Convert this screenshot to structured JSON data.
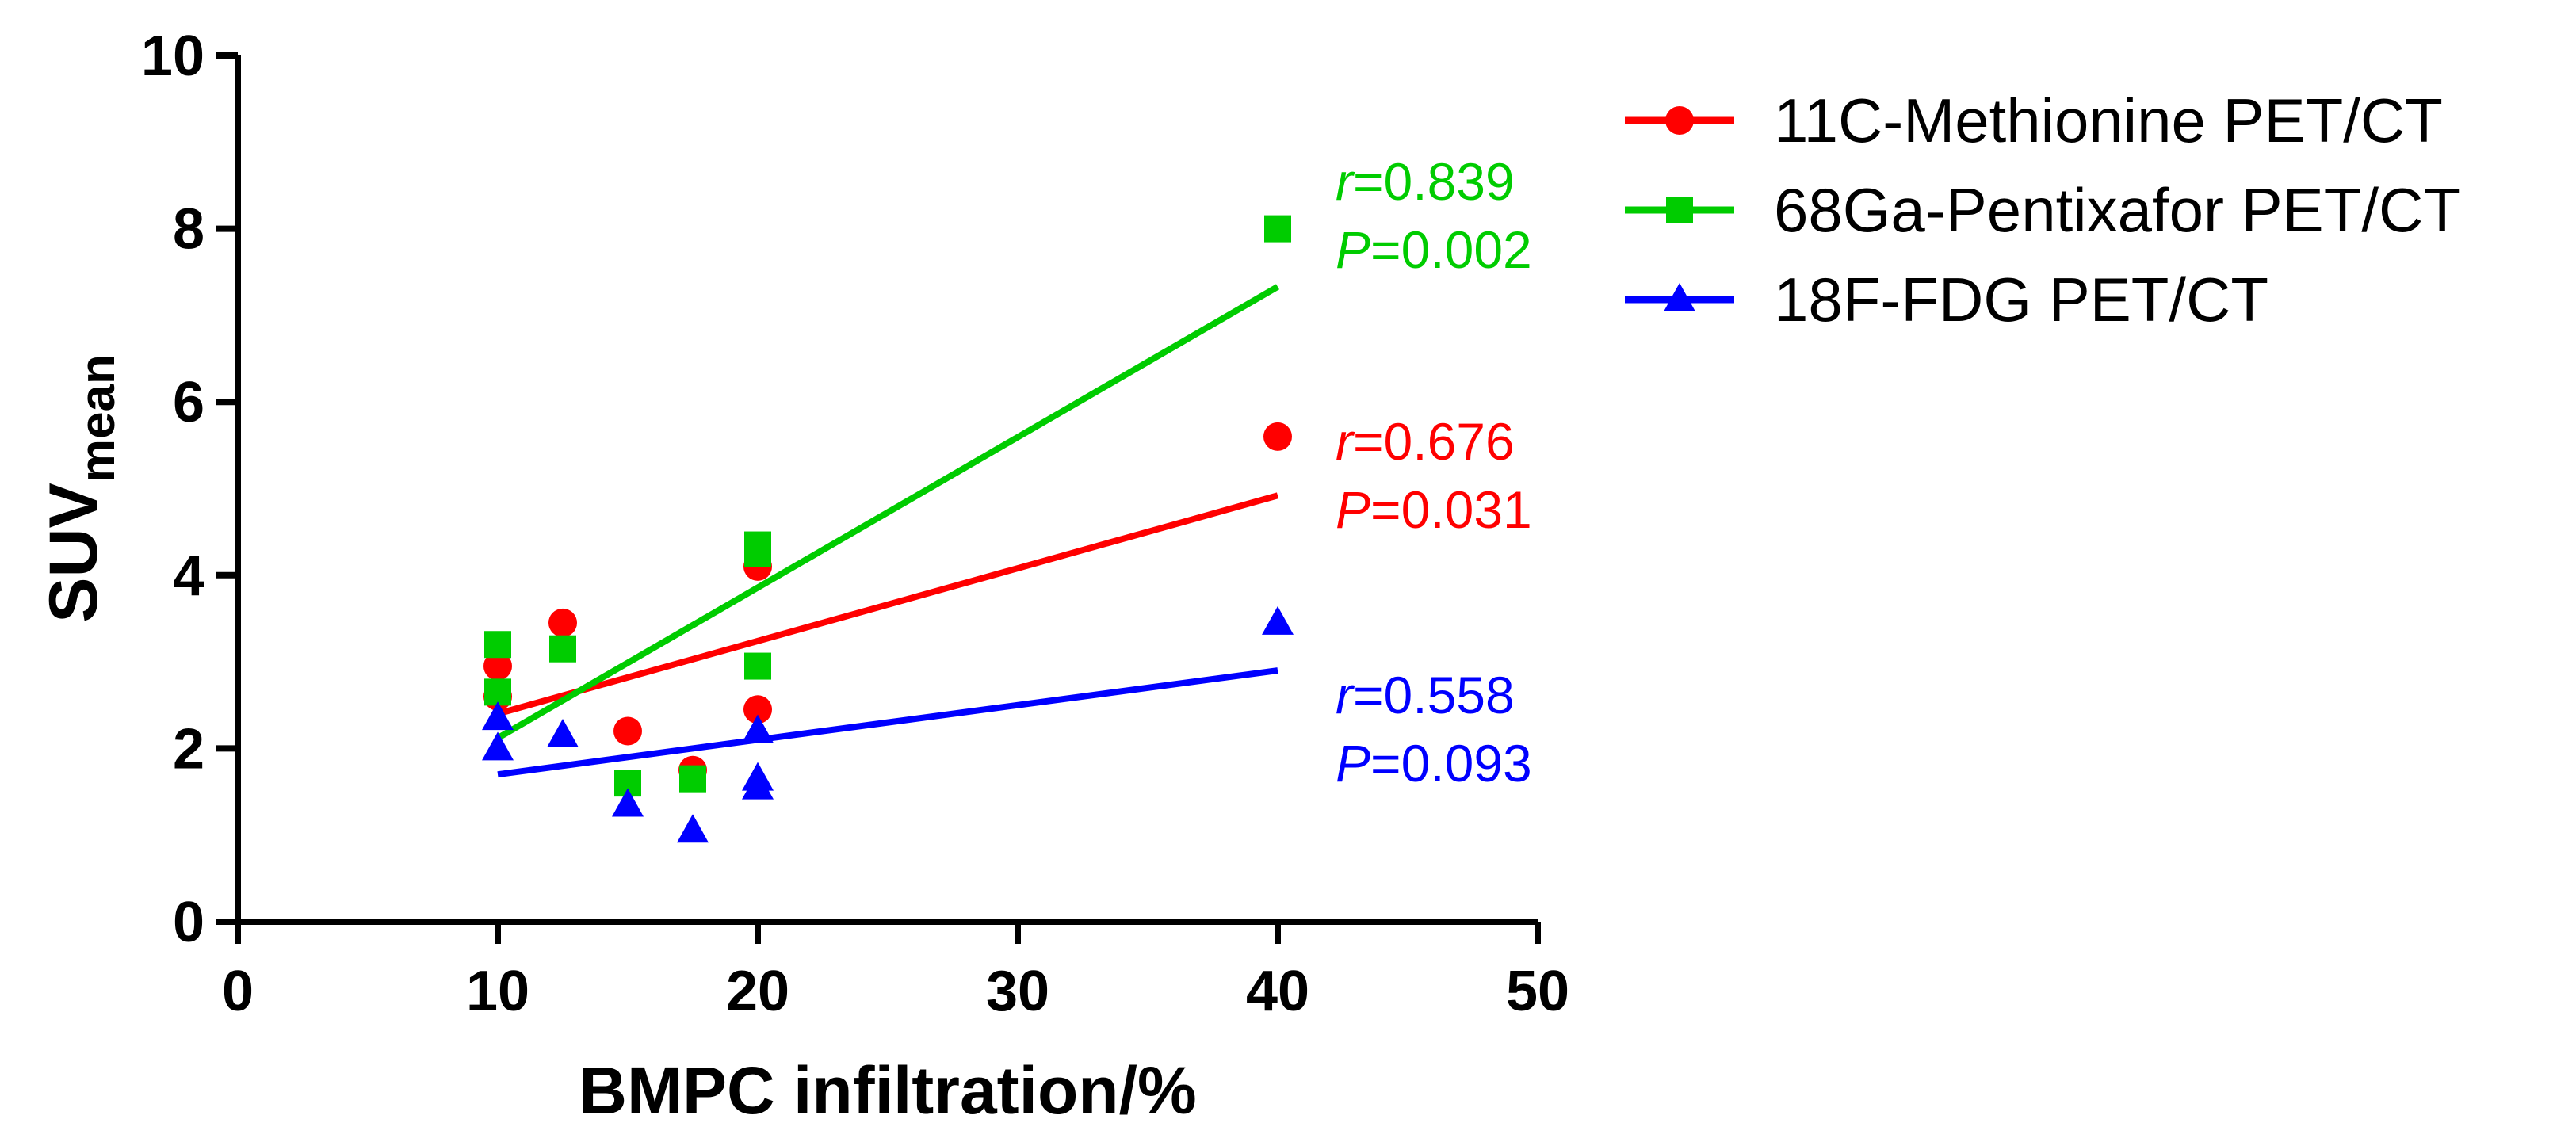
{
  "chart_data": {
    "type": "scatter",
    "xlabel": "BMPC infiltration/%",
    "ylabel": {
      "main": "SUV",
      "subscript": "mean"
    },
    "xlim": [
      0,
      50
    ],
    "ylim": [
      0,
      10
    ],
    "xticks": [
      0,
      10,
      20,
      30,
      40,
      50
    ],
    "yticks": [
      0,
      2,
      4,
      6,
      8,
      10
    ],
    "grid": false,
    "legend_position": "top-right, outside plot",
    "series": [
      {
        "name": "11C-Methionine PET/CT",
        "color": "#ff0000",
        "marker": "circle",
        "points": [
          [
            10,
            2.95
          ],
          [
            10,
            2.6
          ],
          [
            12.5,
            3.45
          ],
          [
            15,
            2.2
          ],
          [
            17.5,
            1.75
          ],
          [
            20,
            4.1
          ],
          [
            20,
            2.45
          ],
          [
            40,
            5.6
          ]
        ],
        "fit_line": [
          [
            10,
            2.4
          ],
          [
            40,
            4.92
          ]
        ],
        "stats": {
          "r_label": "r",
          "r_value": "=0.676",
          "p_label": "P",
          "p_value": "=0.031"
        }
      },
      {
        "name": "68Ga-Pentixafor PET/CT",
        "color": "#00cc00",
        "marker": "square",
        "points": [
          [
            10,
            3.2
          ],
          [
            10,
            2.65
          ],
          [
            12.5,
            3.15
          ],
          [
            15,
            1.6
          ],
          [
            17.5,
            1.65
          ],
          [
            20,
            4.35
          ],
          [
            20,
            4.25
          ],
          [
            20,
            2.95
          ],
          [
            40,
            8.0
          ]
        ],
        "fit_line": [
          [
            10,
            2.12
          ],
          [
            40,
            7.33
          ]
        ],
        "stats": {
          "r_label": "r",
          "r_value": "=0.839",
          "p_label": "P",
          "p_value": "=0.002"
        }
      },
      {
        "name": "18F-FDG PET/CT",
        "color": "#0000ff",
        "marker": "triangle",
        "points": [
          [
            10,
            2.35
          ],
          [
            10,
            2.0
          ],
          [
            12.5,
            2.15
          ],
          [
            15,
            1.35
          ],
          [
            17.5,
            1.05
          ],
          [
            20,
            2.2
          ],
          [
            20,
            1.65
          ],
          [
            20,
            1.55
          ],
          [
            40,
            3.45
          ]
        ],
        "fit_line": [
          [
            10,
            1.7
          ],
          [
            40,
            2.9
          ]
        ],
        "stats": {
          "r_label": "r",
          "r_value": "=0.558",
          "p_label": "P",
          "p_value": "=0.093"
        }
      }
    ]
  }
}
